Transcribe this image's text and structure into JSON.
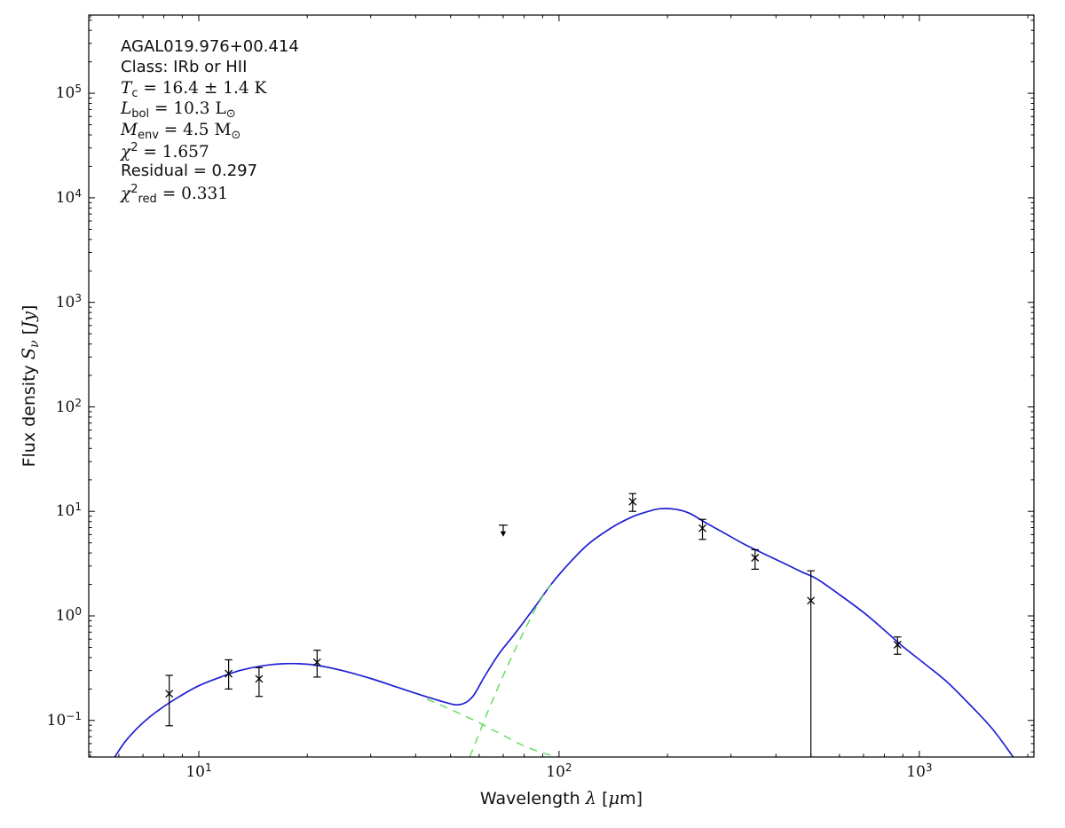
{
  "figure": {
    "annotation": {
      "lines": [
        {
          "text": "AGAL019.976+00.414",
          "style": "sans"
        },
        {
          "text": "Class: IRb or HII",
          "style": "sans"
        },
        {
          "text": "*T*_{c} = 16.4 ± 1.4 K",
          "style": "math"
        },
        {
          "text": "*L*_{bol} = 10.3 L_{⊙}",
          "style": "math"
        },
        {
          "text": "*M*_{env} = 4.5 M_{⊙}",
          "style": "math"
        },
        {
          "text": "*χ*^{2} = 1.657",
          "style": "math"
        },
        {
          "text": "Residual = 0.297",
          "style": "sans"
        },
        {
          "text": "*χ*^{2}_{red} = 0.331",
          "style": "math"
        }
      ]
    },
    "xlabel_rich": "Wavelength *λ* [*μ*m]",
    "ylabel_rich": "Flux density *S*_{*ν*} [*Jy*]",
    "frame_color": "#000000",
    "background": "#ffffff"
  },
  "chart_data": {
    "type": "line",
    "description": "Log-log spectral energy distribution of AGAL019.976+00.414: photometric data points with error bars, one 70 um upper limit, two greybody components (green dashed) and total model fit (blue solid).",
    "x_scale": "log",
    "y_scale": "log",
    "xlim": [
      4.95,
      2080
    ],
    "ylim": [
      0.0447,
      560000
    ],
    "xlabel": "Wavelength λ [μm]",
    "ylabel": "Flux density Sν [Jy]",
    "x_tick_labels": [
      "10^{1}",
      "10^{2}",
      "10^{3}"
    ],
    "y_tick_labels": [
      "10^{−1}",
      "10^{0}",
      "10^{1}",
      "10^{2}",
      "10^{3}",
      "10^{4}",
      "10^{5}"
    ],
    "grid": false,
    "legend": "none",
    "marker_color": "#000000",
    "series": [
      {
        "name": "total model fit",
        "type": "line",
        "style": "solid",
        "color": "#1f1fd6",
        "width": 1.7,
        "points": [
          [
            5.85,
            0.045
          ],
          [
            6.3,
            0.065
          ],
          [
            7.0,
            0.095
          ],
          [
            7.8,
            0.128
          ],
          [
            8.8,
            0.168
          ],
          [
            10,
            0.215
          ],
          [
            11.5,
            0.26
          ],
          [
            13,
            0.3
          ],
          [
            15,
            0.333
          ],
          [
            17,
            0.348
          ],
          [
            19,
            0.349
          ],
          [
            21.5,
            0.335
          ],
          [
            25,
            0.3
          ],
          [
            30,
            0.252
          ],
          [
            36,
            0.205
          ],
          [
            43,
            0.168
          ],
          [
            49,
            0.147
          ],
          [
            52,
            0.141
          ],
          [
            55,
            0.148
          ],
          [
            58,
            0.175
          ],
          [
            62,
            0.26
          ],
          [
            68,
            0.43
          ],
          [
            75,
            0.66
          ],
          [
            86,
            1.24
          ],
          [
            95,
            2.0
          ],
          [
            105,
            3.0
          ],
          [
            120,
            4.8
          ],
          [
            140,
            7.0
          ],
          [
            160,
            8.9
          ],
          [
            175,
            9.9
          ],
          [
            190,
            10.6
          ],
          [
            210,
            10.5
          ],
          [
            230,
            9.6
          ],
          [
            257,
            7.7
          ],
          [
            290,
            6.1
          ],
          [
            325,
            4.9
          ],
          [
            361,
            4.1
          ],
          [
            420,
            3.2
          ],
          [
            470,
            2.65
          ],
          [
            521,
            2.25
          ],
          [
            600,
            1.6
          ],
          [
            700,
            1.08
          ],
          [
            800,
            0.73
          ],
          [
            900,
            0.51
          ],
          [
            1050,
            0.335
          ],
          [
            1200,
            0.23
          ],
          [
            1400,
            0.135
          ],
          [
            1600,
            0.082
          ],
          [
            1822,
            0.0447
          ]
        ]
      },
      {
        "name": "warm component",
        "type": "line",
        "style": "dashed",
        "color": "#5cdc5c",
        "width": 1.4,
        "points": [
          [
            43,
            0.16
          ],
          [
            52,
            0.12
          ],
          [
            60,
            0.095
          ],
          [
            70,
            0.072
          ],
          [
            80,
            0.057
          ],
          [
            90,
            0.049
          ],
          [
            99,
            0.0447
          ]
        ]
      },
      {
        "name": "cold component",
        "type": "line",
        "style": "dashed",
        "color": "#5cdc5c",
        "width": 1.4,
        "points": [
          [
            56.5,
            0.0447
          ],
          [
            60,
            0.075
          ],
          [
            63,
            0.115
          ],
          [
            67,
            0.19
          ],
          [
            71,
            0.3
          ],
          [
            76,
            0.5
          ],
          [
            82,
            0.85
          ],
          [
            88,
            1.35
          ],
          [
            95,
            2.0
          ]
        ]
      }
    ],
    "photometry": [
      {
        "wavelength_um": 8.28,
        "flux_jy": 0.18,
        "flux_lo": 0.089,
        "flux_hi": 0.27
      },
      {
        "wavelength_um": 12.1,
        "flux_jy": 0.28,
        "flux_lo": 0.2,
        "flux_hi": 0.38
      },
      {
        "wavelength_um": 14.7,
        "flux_jy": 0.25,
        "flux_lo": 0.17,
        "flux_hi": 0.32
      },
      {
        "wavelength_um": 21.3,
        "flux_jy": 0.36,
        "flux_lo": 0.26,
        "flux_hi": 0.47
      },
      {
        "wavelength_um": 160,
        "flux_jy": 12.4,
        "flux_lo": 10.0,
        "flux_hi": 14.8
      },
      {
        "wavelength_um": 250,
        "flux_jy": 6.9,
        "flux_lo": 5.4,
        "flux_hi": 8.4
      },
      {
        "wavelength_um": 350,
        "flux_jy": 3.6,
        "flux_lo": 2.8,
        "flux_hi": 4.3
      },
      {
        "wavelength_um": 500,
        "flux_jy": 1.4,
        "flux_lo": 0.0447,
        "flux_hi": 2.7,
        "lower_error_reaches_axis": true
      },
      {
        "wavelength_um": 870,
        "flux_jy": 0.53,
        "flux_lo": 0.43,
        "flux_hi": 0.63
      }
    ],
    "upper_limits": [
      {
        "wavelength_um": 70,
        "flux_jy": 7.4
      }
    ]
  }
}
